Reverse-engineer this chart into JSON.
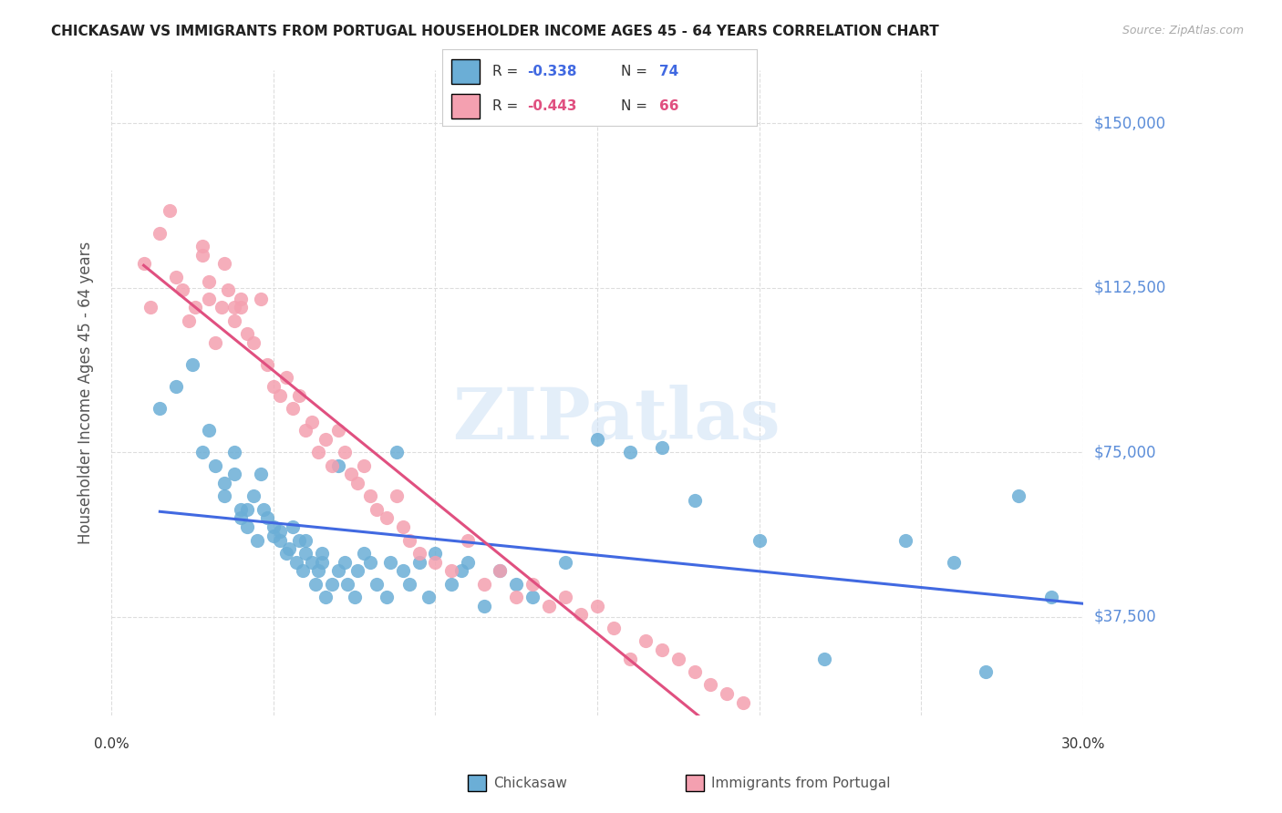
{
  "title": "CHICKASAW VS IMMIGRANTS FROM PORTUGAL HOUSEHOLDER INCOME AGES 45 - 64 YEARS CORRELATION CHART",
  "source": "Source: ZipAtlas.com",
  "ylabel": "Householder Income Ages 45 - 64 years",
  "ytick_values": [
    37500,
    75000,
    112500,
    150000
  ],
  "ytick_labels": [
    "$37,500",
    "$75,000",
    "$112,500",
    "$150,000"
  ],
  "ymin": 15000,
  "ymax": 162000,
  "xmin": 0.0,
  "xmax": 0.3,
  "color_blue": "#6baed6",
  "color_pink": "#f4a0b0",
  "trendline_blue": "#4169E1",
  "trendline_pink": "#e05080",
  "trendline_dashed": "#cccccc",
  "watermark": "ZIPatlas",
  "legend1_r_val": "-0.338",
  "legend1_n_val": "74",
  "legend2_r_val": "-0.443",
  "legend2_n_val": "66",
  "legend_r_color_blue": "#4169E1",
  "legend_r_color_pink": "#e05080",
  "chickasaw_x": [
    0.015,
    0.02,
    0.025,
    0.028,
    0.03,
    0.032,
    0.035,
    0.035,
    0.038,
    0.038,
    0.04,
    0.04,
    0.042,
    0.042,
    0.044,
    0.045,
    0.046,
    0.047,
    0.048,
    0.05,
    0.05,
    0.052,
    0.052,
    0.054,
    0.055,
    0.056,
    0.057,
    0.058,
    0.059,
    0.06,
    0.06,
    0.062,
    0.063,
    0.064,
    0.065,
    0.065,
    0.066,
    0.068,
    0.07,
    0.07,
    0.072,
    0.073,
    0.075,
    0.076,
    0.078,
    0.08,
    0.082,
    0.085,
    0.086,
    0.088,
    0.09,
    0.092,
    0.095,
    0.098,
    0.1,
    0.105,
    0.108,
    0.11,
    0.115,
    0.12,
    0.125,
    0.13,
    0.14,
    0.15,
    0.16,
    0.17,
    0.18,
    0.2,
    0.22,
    0.245,
    0.26,
    0.27,
    0.28,
    0.29
  ],
  "chickasaw_y": [
    85000,
    90000,
    95000,
    75000,
    80000,
    72000,
    65000,
    68000,
    70000,
    75000,
    60000,
    62000,
    58000,
    62000,
    65000,
    55000,
    70000,
    62000,
    60000,
    56000,
    58000,
    55000,
    57000,
    52000,
    53000,
    58000,
    50000,
    55000,
    48000,
    52000,
    55000,
    50000,
    45000,
    48000,
    50000,
    52000,
    42000,
    45000,
    48000,
    72000,
    50000,
    45000,
    42000,
    48000,
    52000,
    50000,
    45000,
    42000,
    50000,
    75000,
    48000,
    45000,
    50000,
    42000,
    52000,
    45000,
    48000,
    50000,
    40000,
    48000,
    45000,
    42000,
    50000,
    78000,
    75000,
    76000,
    64000,
    55000,
    28000,
    55000,
    50000,
    25000,
    65000,
    42000
  ],
  "portugal_x": [
    0.01,
    0.012,
    0.015,
    0.018,
    0.02,
    0.022,
    0.024,
    0.026,
    0.028,
    0.028,
    0.03,
    0.03,
    0.032,
    0.034,
    0.035,
    0.036,
    0.038,
    0.038,
    0.04,
    0.04,
    0.042,
    0.044,
    0.046,
    0.048,
    0.05,
    0.052,
    0.054,
    0.056,
    0.058,
    0.06,
    0.062,
    0.064,
    0.066,
    0.068,
    0.07,
    0.072,
    0.074,
    0.076,
    0.078,
    0.08,
    0.082,
    0.085,
    0.088,
    0.09,
    0.092,
    0.095,
    0.1,
    0.105,
    0.11,
    0.115,
    0.12,
    0.125,
    0.13,
    0.135,
    0.14,
    0.145,
    0.15,
    0.155,
    0.16,
    0.165,
    0.17,
    0.175,
    0.18,
    0.185,
    0.19,
    0.195
  ],
  "portugal_y": [
    118000,
    108000,
    125000,
    130000,
    115000,
    112000,
    105000,
    108000,
    120000,
    122000,
    110000,
    114000,
    100000,
    108000,
    118000,
    112000,
    105000,
    108000,
    108000,
    110000,
    102000,
    100000,
    110000,
    95000,
    90000,
    88000,
    92000,
    85000,
    88000,
    80000,
    82000,
    75000,
    78000,
    72000,
    80000,
    75000,
    70000,
    68000,
    72000,
    65000,
    62000,
    60000,
    65000,
    58000,
    55000,
    52000,
    50000,
    48000,
    55000,
    45000,
    48000,
    42000,
    45000,
    40000,
    42000,
    38000,
    40000,
    35000,
    28000,
    32000,
    30000,
    28000,
    25000,
    22000,
    20000,
    18000
  ]
}
